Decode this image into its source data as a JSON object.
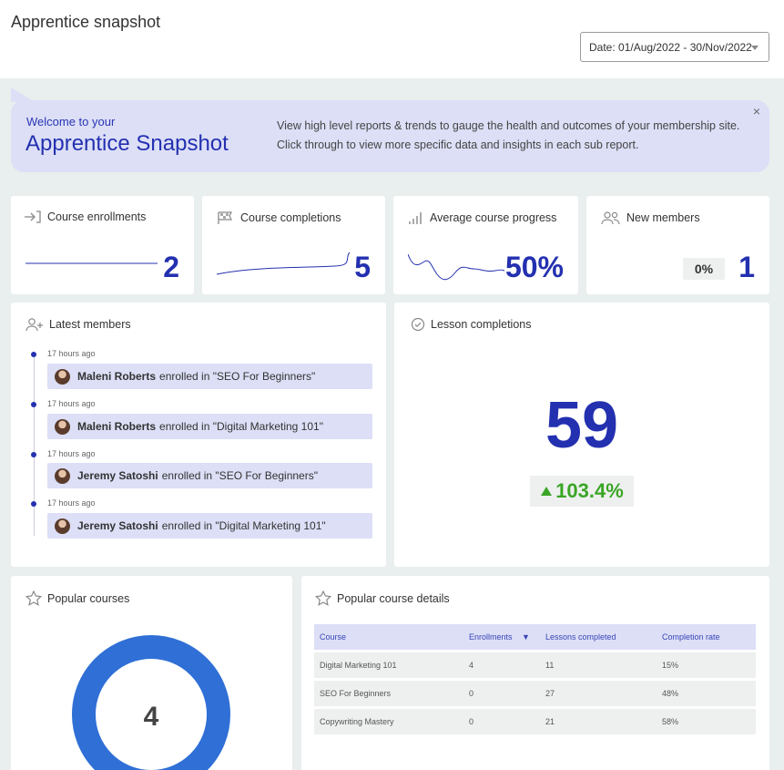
{
  "header": {
    "title": "Apprentice snapshot",
    "date_label": "Date: 01/Aug/2022 - 30/Nov/2022"
  },
  "welcome": {
    "small": "Welcome to your",
    "big": "Apprentice Snapshot",
    "line1": "View high level reports & trends to gauge the health and outcomes of your membership site.",
    "line2": "Click through to view more specific data and insights in each sub report.",
    "close": "×"
  },
  "stats": {
    "enrollments": {
      "label": "Course enrollments",
      "value": "2"
    },
    "completions": {
      "label": "Course completions",
      "value": "5"
    },
    "progress": {
      "label": "Average course progress",
      "value": "50%"
    },
    "new_members": {
      "label": "New members",
      "change": "0%",
      "value": "1"
    }
  },
  "latest_members": {
    "title": "Latest members",
    "items": [
      {
        "time": "17 hours ago",
        "name": "Maleni Roberts",
        "text": "enrolled in \"SEO For Beginners\""
      },
      {
        "time": "17 hours ago",
        "name": "Maleni Roberts",
        "text": "enrolled in \"Digital Marketing 101\""
      },
      {
        "time": "17 hours ago",
        "name": "Jeremy Satoshi",
        "text": "enrolled in \"SEO For Beginners\""
      },
      {
        "time": "17 hours ago",
        "name": "Jeremy Satoshi",
        "text": "enrolled in \"Digital Marketing 101\""
      }
    ]
  },
  "lesson_completions": {
    "title": "Lesson completions",
    "value": "59",
    "change": "103.4%"
  },
  "popular_courses": {
    "title": "Popular courses",
    "center_value": "4"
  },
  "popular_course_details": {
    "title": "Popular course details",
    "columns": [
      "Course",
      "Enrollments",
      "Lessons completed",
      "Completion rate"
    ],
    "sort_indicator": "▼",
    "rows": [
      [
        "Digital Marketing 101",
        "4",
        "11",
        "15%"
      ],
      [
        "SEO For Beginners",
        "0",
        "27",
        "48%"
      ],
      [
        "Copywriting Mastery",
        "0",
        "21",
        "58%"
      ]
    ]
  },
  "colors": {
    "accent": "#2330b0",
    "highlight": "#dcdff6",
    "positive": "#3aa626",
    "donut": "#2f6fd6"
  }
}
